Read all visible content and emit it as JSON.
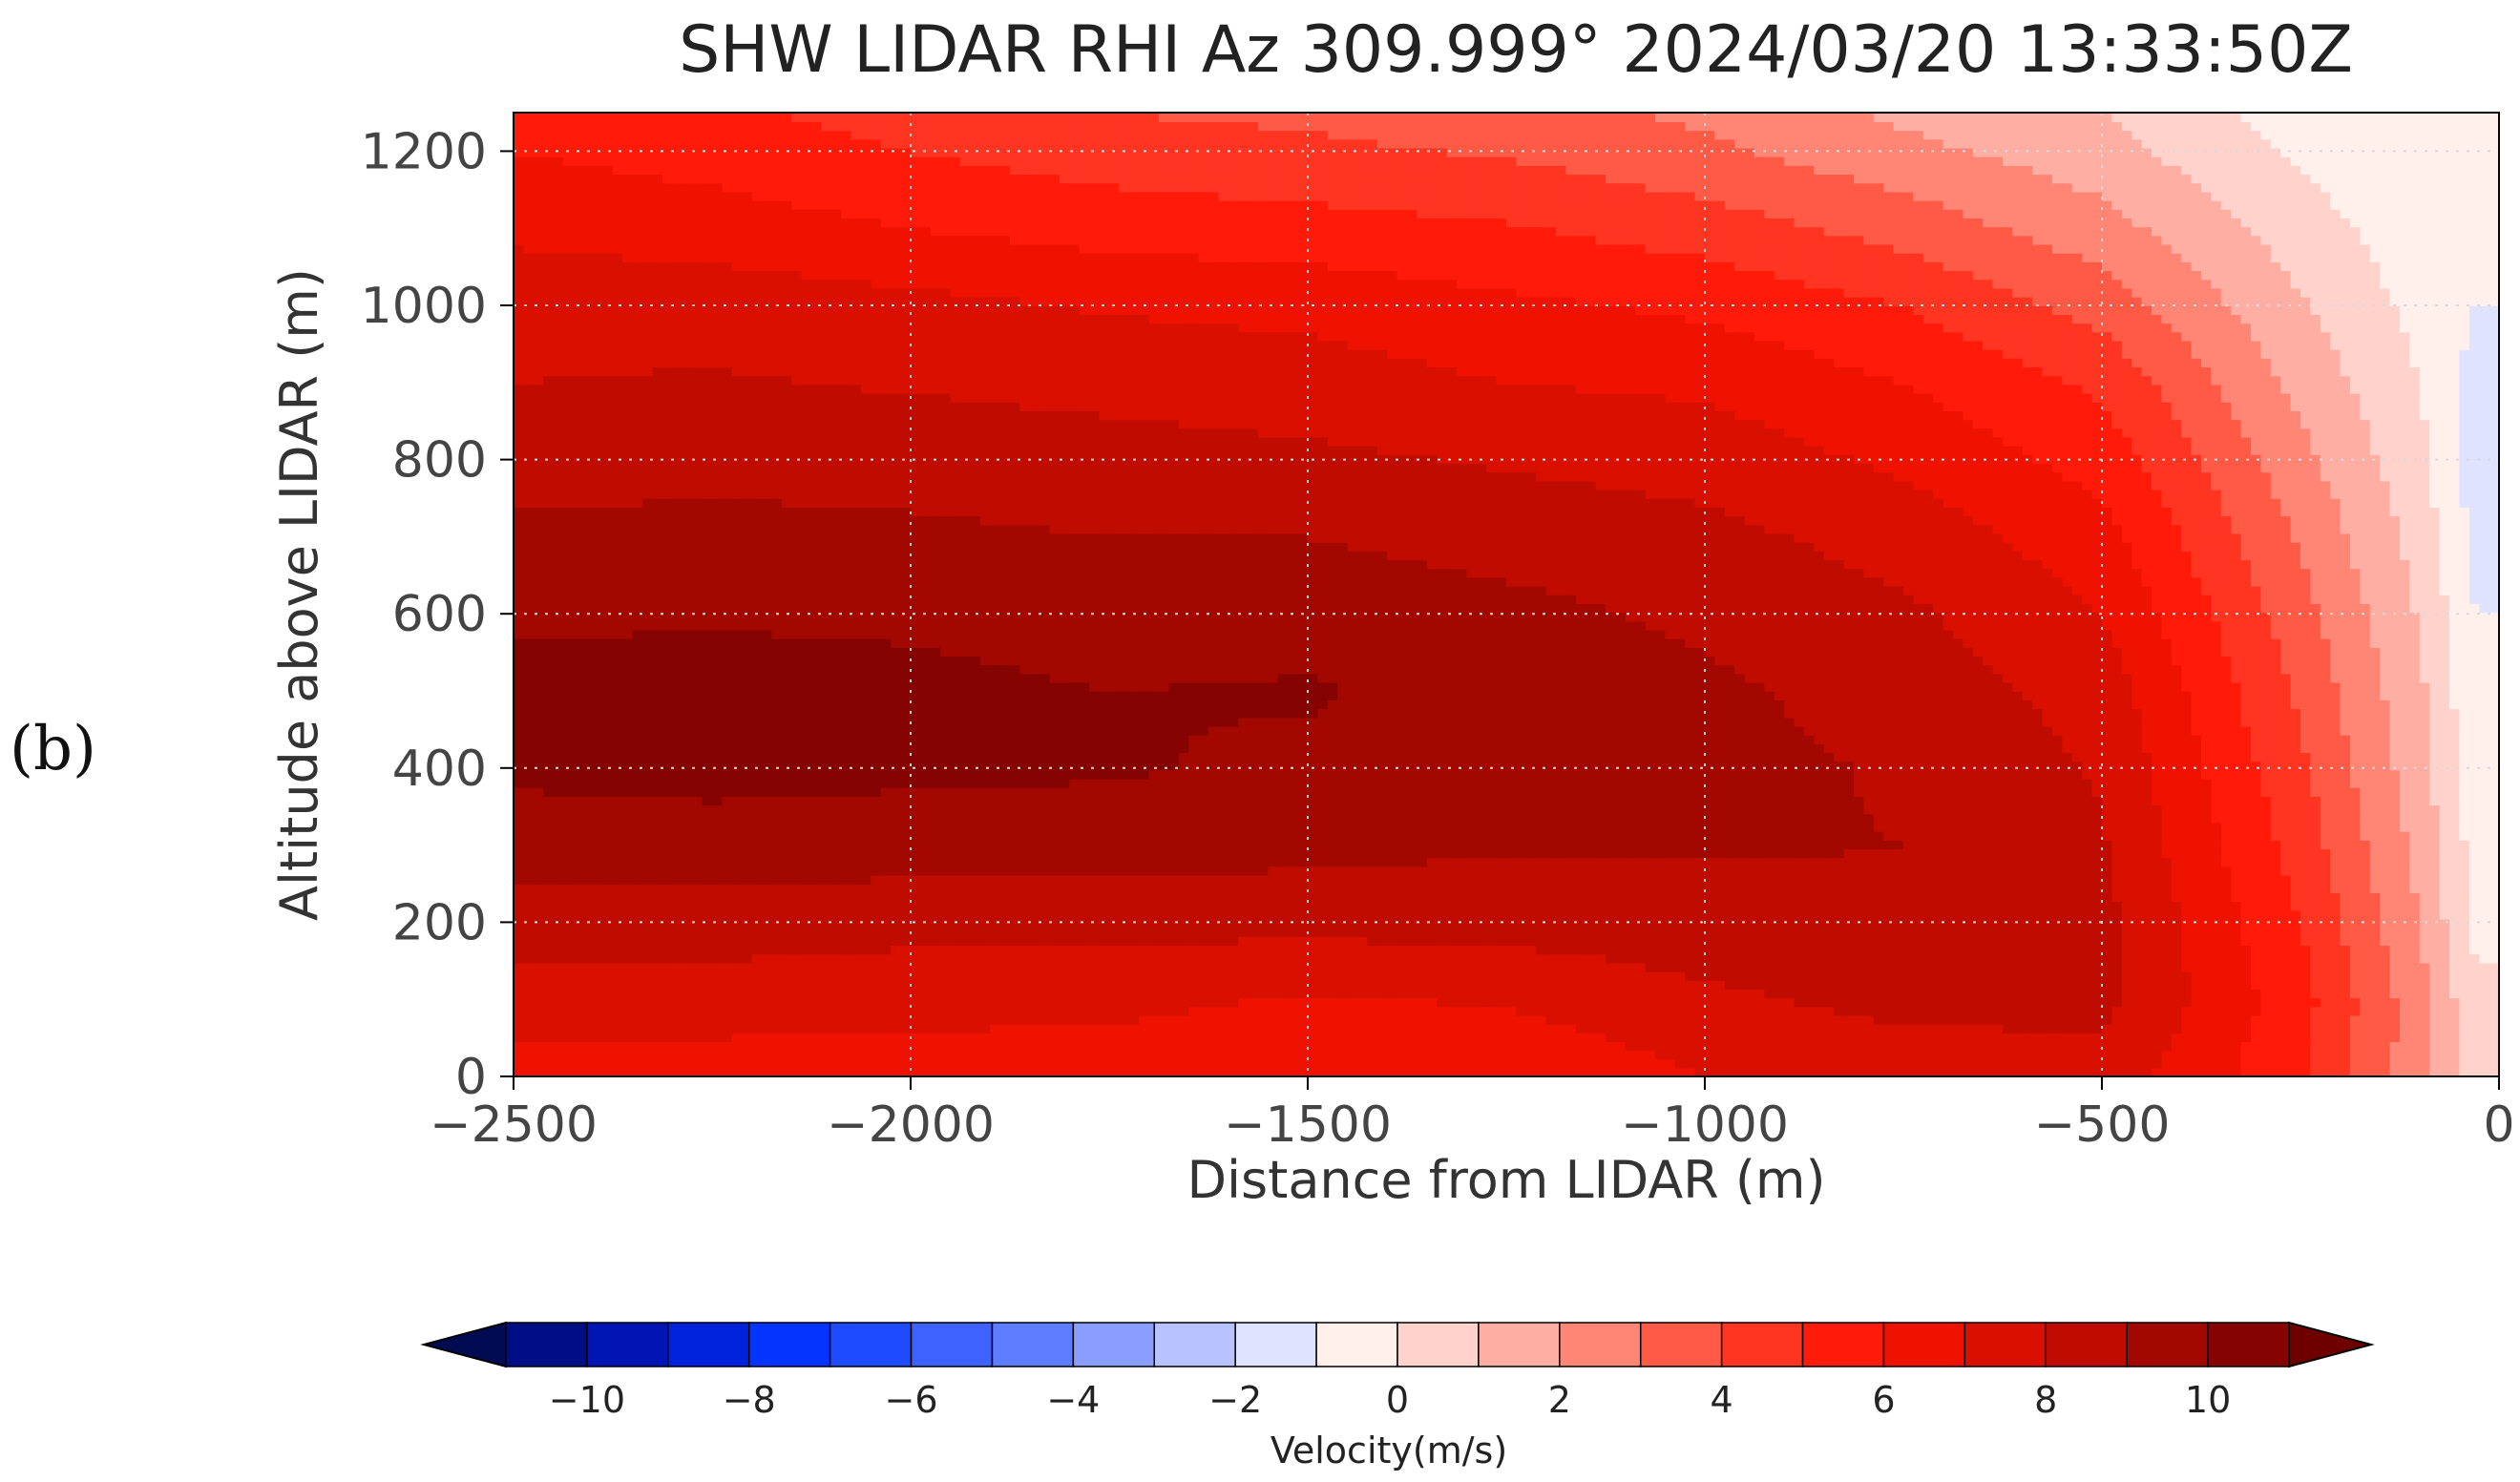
{
  "panel_label": "(b)",
  "chart_data": {
    "type": "heatmap",
    "title": "SHW LIDAR RHI Az 309.999° 2024/03/20 13:33:50Z",
    "xlabel": "Distance from LIDAR (m)",
    "ylabel": "Altitude above LIDAR (m)",
    "xlim": [
      -2500,
      0
    ],
    "ylim": [
      0,
      1250
    ],
    "x_ticks": [
      -2500,
      -2000,
      -1500,
      -1000,
      -500,
      0
    ],
    "x_tick_labels": [
      "−2500",
      "−2000",
      "−1500",
      "−1000",
      "−500",
      "0"
    ],
    "y_ticks": [
      0,
      200,
      400,
      600,
      800,
      1000,
      1200
    ],
    "y_tick_labels": [
      "0",
      "200",
      "400",
      "600",
      "800",
      "1000",
      "1200"
    ],
    "grid": true,
    "colorbar": {
      "label": "Velocity(m/s)",
      "levels": [
        -11,
        -10,
        -9,
        -8,
        -7,
        -6,
        -5,
        -4,
        -3,
        -2,
        -1,
        0,
        1,
        2,
        3,
        4,
        5,
        6,
        7,
        8,
        9,
        10,
        11
      ],
      "colors": [
        "#000b52",
        "#000e86",
        "#0015b4",
        "#0022dc",
        "#0533ff",
        "#1f4bff",
        "#3d62ff",
        "#5e7cff",
        "#8a9eff",
        "#b7c2ff",
        "#dfe3ff",
        "#fff0ec",
        "#ffd2cc",
        "#ffaea4",
        "#ff8575",
        "#ff5a45",
        "#ff3522",
        "#ff1a0a",
        "#ef1200",
        "#d90f00",
        "#c00c00",
        "#a30800",
        "#850300",
        "#6e0000"
      ],
      "tick_values": [
        -10,
        -8,
        -6,
        -4,
        -2,
        0,
        2,
        4,
        6,
        8,
        10
      ],
      "tick_labels": [
        "−10",
        "−8",
        "−6",
        "−4",
        "−2",
        "0",
        "2",
        "4",
        "6",
        "8",
        "10"
      ],
      "extend": "both"
    },
    "velocity_profile": {
      "x": [
        -2500,
        -2250,
        -2000,
        -1750,
        -1500,
        -1250,
        -1000,
        -750,
        -500,
        -250,
        -100,
        -30
      ],
      "y": [
        0,
        100,
        200,
        300,
        400,
        500,
        600,
        700,
        800,
        900,
        1000,
        1100,
        1200,
        1250
      ],
      "v": [
        [
          6.5,
          7.5,
          8.5,
          9.5,
          10.2,
          10.4,
          9.8,
          9.2,
          8.6,
          8.0,
          7.6,
          6.8,
          6.0,
          5.6
        ],
        [
          6.5,
          7.5,
          8.5,
          9.6,
          10.3,
          10.4,
          9.9,
          9.3,
          8.7,
          8.1,
          7.6,
          6.5,
          5.6,
          5.2
        ],
        [
          6.4,
          7.4,
          8.3,
          9.5,
          10.2,
          10.3,
          9.8,
          9.2,
          8.6,
          7.9,
          7.3,
          6.0,
          5.0,
          4.6
        ],
        [
          6.4,
          7.3,
          8.3,
          9.5,
          10.1,
          10.0,
          9.5,
          9.0,
          8.4,
          7.7,
          6.9,
          5.6,
          4.5,
          4.0
        ],
        [
          6.0,
          6.9,
          8.3,
          9.3,
          9.8,
          10.1,
          9.6,
          9.0,
          8.2,
          7.5,
          6.7,
          5.4,
          4.2,
          3.8
        ],
        [
          6.1,
          7.1,
          8.4,
          9.1,
          9.5,
          9.6,
          9.3,
          8.6,
          7.9,
          7.0,
          6.2,
          5.1,
          3.9,
          3.4
        ],
        [
          7.0,
          7.8,
          8.6,
          9.1,
          9.3,
          9.2,
          8.8,
          8.3,
          7.6,
          6.8,
          5.8,
          4.5,
          3.2,
          2.8
        ],
        [
          7.4,
          8.3,
          8.8,
          9.0,
          8.9,
          8.6,
          8.2,
          7.6,
          6.8,
          6.0,
          5.0,
          3.6,
          2.3,
          1.8
        ],
        [
          7.6,
          8.3,
          8.3,
          8.1,
          7.9,
          7.6,
          7.0,
          6.4,
          5.6,
          4.8,
          3.6,
          2.4,
          1.4,
          1.0
        ],
        [
          5.2,
          5.4,
          5.0,
          4.6,
          4.2,
          3.8,
          3.4,
          2.9,
          2.3,
          1.7,
          1.1,
          0.5,
          -0.2,
          -0.5
        ],
        [
          2.4,
          2.4,
          2.0,
          1.7,
          1.4,
          1.2,
          0.9,
          0.6,
          0.3,
          0.0,
          -0.3,
          -0.6,
          -1.0,
          -1.0
        ],
        [
          0.4,
          0.2,
          -0.2,
          -0.4,
          -0.6,
          -0.8,
          -1.0,
          -1.2,
          -1.6,
          -1.4,
          -1.0,
          -0.7,
          -0.5,
          -0.4
        ]
      ]
    }
  }
}
